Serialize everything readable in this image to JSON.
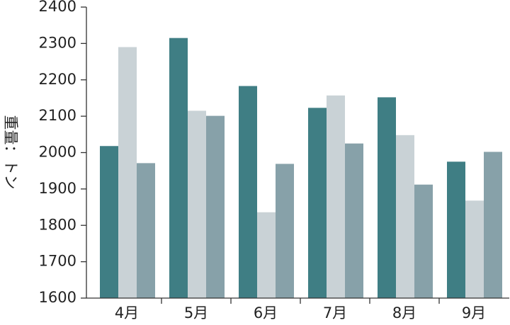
{
  "chart_data": {
    "type": "bar",
    "y_label": "重量：トン",
    "categories": [
      "4月",
      "5月",
      "6月",
      "7月",
      "8月",
      "9月"
    ],
    "series": [
      {
        "color": "#3f7e84",
        "values": [
          2018,
          2315,
          2183,
          2123,
          2152,
          1975
        ]
      },
      {
        "color": "#c9d2d6",
        "values": [
          2290,
          2115,
          1836,
          2157,
          2048,
          1868
        ]
      },
      {
        "color": "#87a1a9",
        "values": [
          1971,
          2101,
          1969,
          2025,
          1912,
          2002
        ]
      }
    ],
    "ylim": [
      1600,
      2400
    ],
    "yticks": [
      1600,
      1700,
      1800,
      1900,
      2000,
      2100,
      2200,
      2300,
      2400
    ]
  }
}
